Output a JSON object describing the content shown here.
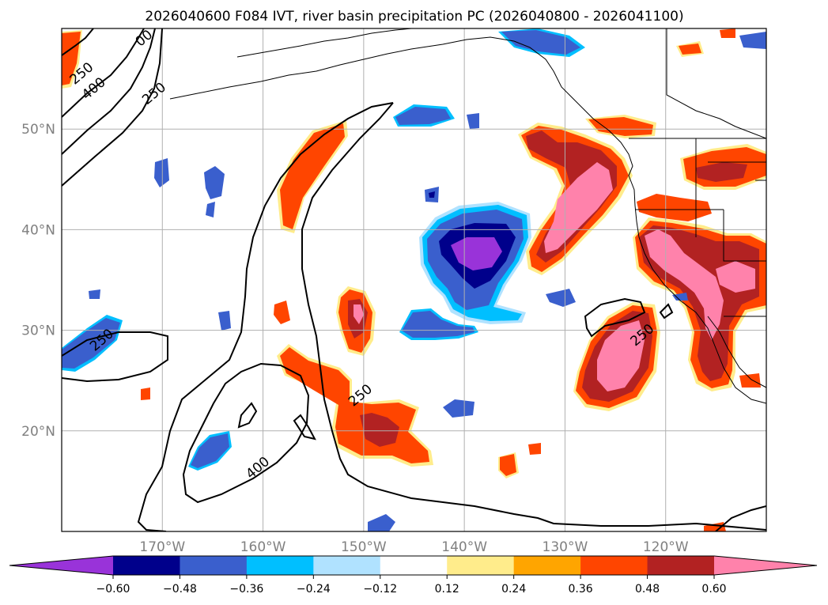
{
  "figure": {
    "title": "2026040600 F084 IVT, river basin precipitation PC (2026040800 - 2026041100)"
  },
  "map": {
    "lon_range": [
      -180,
      -110
    ],
    "lat_range": [
      10,
      60
    ],
    "lat_ticks": [
      {
        "value": 50,
        "label": "50°N"
      },
      {
        "value": 40,
        "label": "40°N"
      },
      {
        "value": 30,
        "label": "30°N"
      },
      {
        "value": 20,
        "label": "20°N"
      }
    ],
    "lon_ticks": [
      {
        "value": -170,
        "label": "170°W"
      },
      {
        "value": -160,
        "label": "160°W"
      },
      {
        "value": -150,
        "label": "150°W"
      },
      {
        "value": -140,
        "label": "140°W"
      },
      {
        "value": -130,
        "label": "130°W"
      },
      {
        "value": -120,
        "label": "120°W"
      }
    ],
    "grid": true,
    "contour_labels": [
      {
        "text": "250",
        "lon": -178,
        "lat": 55.5
      },
      {
        "text": "400",
        "lon": -176.8,
        "lat": 54
      },
      {
        "text": "250",
        "lon": -170.8,
        "lat": 53.5
      },
      {
        "text": "00",
        "lon": -171.8,
        "lat": 59
      },
      {
        "text": "250",
        "lon": -176,
        "lat": 29
      },
      {
        "text": "400",
        "lon": -160.5,
        "lat": 16.3
      },
      {
        "text": "250",
        "lon": -150.3,
        "lat": 23.5
      },
      {
        "text": "250",
        "lon": -122.3,
        "lat": 29.5
      }
    ]
  },
  "colorbar": {
    "levels": [
      "-0.60",
      "-0.48",
      "-0.36",
      "-0.24",
      "-0.12",
      "0.12",
      "0.24",
      "0.36",
      "0.48",
      "0.60"
    ],
    "colors": [
      "#9933d9",
      "#00008b",
      "#3a5fcd",
      "#00bfff",
      "#b0e2ff",
      "#ffffff",
      "#ffec8b",
      "#ffa500",
      "#ff4500",
      "#b22222",
      "#ff82ab"
    ],
    "extend": "both"
  }
}
